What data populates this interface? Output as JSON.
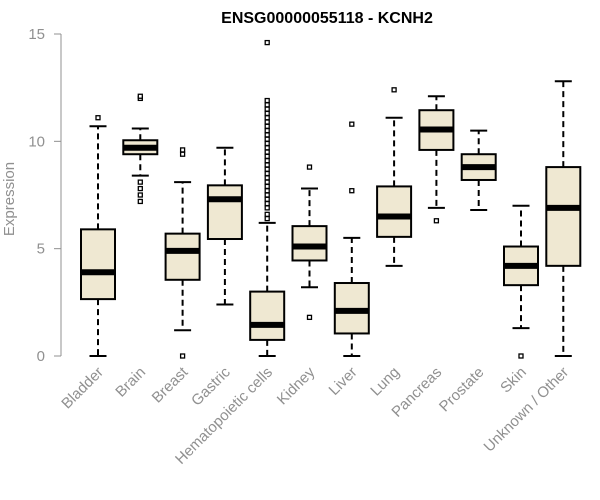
{
  "chart_data": {
    "type": "boxplot",
    "title": "ENSG00000055118 - KCNH2",
    "xlabel": "",
    "ylabel": "Expression",
    "ylim": [
      0,
      15
    ],
    "yticks": [
      "0",
      "5",
      "10",
      "15"
    ],
    "box_fill": "#efe8d2",
    "categories": [
      "Bladder",
      "Brain",
      "Breast",
      "Gastric",
      "Hematopoietic cells",
      "Kidney",
      "Liver",
      "Lung",
      "Pancreas",
      "Prostate",
      "Skin",
      "Unknown / Other"
    ],
    "boxes": [
      {
        "name": "Bladder",
        "min": 0.0,
        "q1": 2.65,
        "median": 3.9,
        "q3": 5.9,
        "max": 10.7,
        "outliers": [
          11.1
        ]
      },
      {
        "name": "Brain",
        "min": 8.4,
        "q1": 9.4,
        "median": 9.7,
        "q3": 10.05,
        "max": 10.6,
        "outliers": [
          7.2,
          7.5,
          7.8,
          8.1,
          12.0,
          12.1
        ]
      },
      {
        "name": "Breast",
        "min": 1.2,
        "q1": 3.55,
        "median": 4.9,
        "q3": 5.7,
        "max": 8.1,
        "outliers": [
          0.0,
          9.4,
          9.6
        ]
      },
      {
        "name": "Gastric",
        "min": 2.4,
        "q1": 5.45,
        "median": 7.3,
        "q3": 7.95,
        "max": 9.7,
        "outliers": []
      },
      {
        "name": "Hematopoietic cells",
        "min": 0.0,
        "q1": 0.75,
        "median": 1.45,
        "q3": 3.0,
        "max": 6.2,
        "outliers": [
          6.4,
          6.6,
          6.9,
          7.1,
          7.3,
          7.5,
          7.7,
          7.9,
          8.1,
          8.3,
          8.5,
          8.7,
          8.9,
          9.1,
          9.3,
          9.5,
          9.7,
          9.9,
          10.1,
          10.3,
          10.5,
          10.7,
          10.9,
          11.1,
          11.3,
          11.5,
          11.7,
          11.9,
          14.6
        ]
      },
      {
        "name": "Kidney",
        "min": 3.2,
        "q1": 4.45,
        "median": 5.1,
        "q3": 6.05,
        "max": 7.8,
        "outliers": [
          1.8,
          8.8
        ]
      },
      {
        "name": "Liver",
        "min": 0.0,
        "q1": 1.05,
        "median": 2.1,
        "q3": 3.4,
        "max": 5.5,
        "outliers": [
          7.7,
          10.8
        ]
      },
      {
        "name": "Lung",
        "min": 4.2,
        "q1": 5.55,
        "median": 6.5,
        "q3": 7.9,
        "max": 11.1,
        "outliers": [
          12.4
        ]
      },
      {
        "name": "Pancreas",
        "min": 6.9,
        "q1": 9.6,
        "median": 10.55,
        "q3": 11.45,
        "max": 12.1,
        "outliers": [
          6.3
        ]
      },
      {
        "name": "Prostate",
        "min": 6.8,
        "q1": 8.2,
        "median": 8.8,
        "q3": 9.4,
        "max": 10.5,
        "outliers": []
      },
      {
        "name": "Skin",
        "min": 1.3,
        "q1": 3.3,
        "median": 4.2,
        "q3": 5.1,
        "max": 7.0,
        "outliers": [
          0.0
        ]
      },
      {
        "name": "Unknown / Other",
        "min": 0.0,
        "q1": 4.2,
        "median": 6.9,
        "q3": 8.8,
        "max": 12.8,
        "outliers": []
      }
    ]
  }
}
